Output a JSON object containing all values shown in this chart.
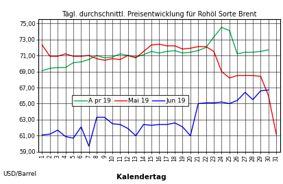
{
  "title": "Tägl. durchschnittl. Preisentwicklung für Rohöl Sorte Brent",
  "xlabel": "Kalendertag",
  "ylabel": "USD/Barrel",
  "ylim": [
    59.0,
    75.5
  ],
  "yticks": [
    59.0,
    61.0,
    63.0,
    65.0,
    67.0,
    69.0,
    71.0,
    73.0,
    75.0
  ],
  "ytick_labels": [
    "59,00",
    "61,00",
    "63,00",
    "65,00",
    "67,00",
    "69,00",
    "71,00",
    "73,00",
    "75,00"
  ],
  "xticks": [
    1,
    2,
    3,
    4,
    5,
    6,
    7,
    8,
    9,
    10,
    11,
    12,
    13,
    14,
    15,
    16,
    17,
    18,
    19,
    20,
    21,
    22,
    23,
    24,
    25,
    26,
    27,
    28,
    29,
    30,
    31
  ],
  "apr19": {
    "label": "A pr 19",
    "color": "#00B050",
    "x": [
      1,
      2,
      3,
      4,
      5,
      6,
      7,
      8,
      9,
      10,
      11,
      12,
      13,
      14,
      15,
      16,
      17,
      18,
      19,
      20,
      21,
      22,
      23,
      24,
      25,
      26,
      27,
      28,
      29,
      30
    ],
    "y": [
      69.1,
      69.4,
      69.5,
      69.5,
      70.1,
      70.2,
      70.5,
      71.0,
      70.7,
      70.8,
      71.2,
      71.0,
      70.8,
      71.1,
      71.5,
      71.3,
      71.5,
      71.6,
      71.3,
      71.4,
      71.6,
      72.0,
      73.3,
      74.5,
      74.1,
      71.2,
      71.4,
      71.4,
      71.5,
      71.7
    ]
  },
  "mai19": {
    "label": "Mai 19",
    "color": "#FF0000",
    "x": [
      1,
      2,
      3,
      4,
      5,
      6,
      7,
      8,
      9,
      10,
      11,
      12,
      13,
      14,
      15,
      16,
      17,
      18,
      19,
      20,
      21,
      22,
      23,
      24,
      25,
      26,
      27,
      28,
      29,
      30,
      31
    ],
    "y": [
      72.3,
      70.9,
      70.9,
      71.2,
      70.9,
      70.9,
      71.0,
      70.6,
      70.4,
      70.6,
      70.5,
      71.0,
      70.7,
      71.5,
      72.3,
      72.4,
      72.2,
      72.2,
      71.8,
      71.9,
      72.1,
      72.1,
      71.5,
      69.0,
      68.2,
      68.5,
      68.5,
      68.5,
      68.4,
      66.0,
      61.2
    ]
  },
  "jun19": {
    "label": "Jun 19",
    "color": "#0000FF",
    "x": [
      1,
      2,
      3,
      4,
      5,
      6,
      7,
      8,
      9,
      10,
      11,
      12,
      13,
      14,
      15,
      16,
      17,
      18,
      19,
      20,
      21,
      22,
      23,
      24,
      25,
      26,
      27,
      28,
      29,
      30
    ],
    "y": [
      61.1,
      61.2,
      61.7,
      60.9,
      60.7,
      62.1,
      59.7,
      63.3,
      63.3,
      62.5,
      62.4,
      61.9,
      61.0,
      62.4,
      62.3,
      62.4,
      62.4,
      62.6,
      62.1,
      61.0,
      65.0,
      65.1,
      65.1,
      65.2,
      65.0,
      65.4,
      66.4,
      65.5,
      66.6,
      66.7
    ]
  },
  "background_color": "#FFFFFF",
  "grid_color": "#000000",
  "title_fontsize": 7.0,
  "tick_fontsize": 6.0,
  "xlabel_fontsize": 7.5,
  "ylabel_fontsize": 6.5,
  "legend_fontsize": 6.5,
  "linewidth": 1.0
}
